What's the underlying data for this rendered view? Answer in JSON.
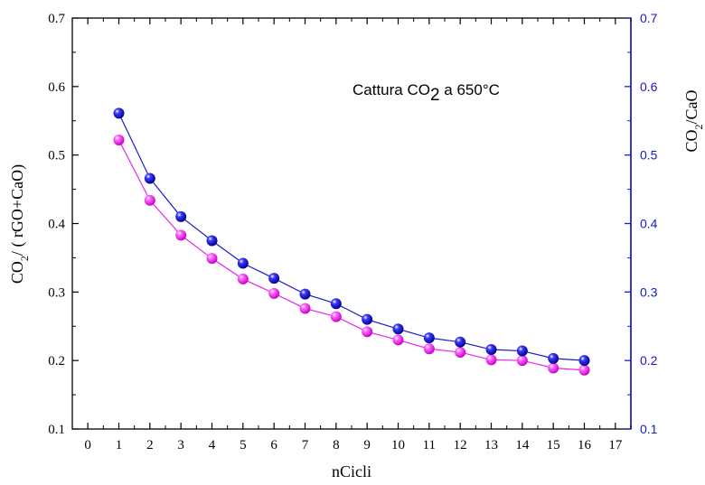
{
  "colors": {
    "left_axis": "#000000",
    "right_axis": "#1a1acc",
    "series_left": "#ee22ee",
    "series_right": "#1a1acc"
  },
  "chart_data": {
    "type": "line",
    "title": "",
    "xlabel": "nCicli",
    "ylabel_parts": {
      "a": "CO",
      "sub": "2",
      "b": "/ ( rGO+CaO)"
    },
    "y2label_parts": {
      "a": "CO",
      "sub": "2",
      "b": "/CaO"
    },
    "annotation_parts": {
      "a": "Cattura CO",
      "sub": "2",
      "b": " a 650°C"
    },
    "xlim": [
      -0.5,
      17.5
    ],
    "ylim": [
      0.1,
      0.7
    ],
    "y2lim": [
      0.1,
      0.7
    ],
    "x_ticks": [
      "0",
      "1",
      "2",
      "3",
      "4",
      "5",
      "6",
      "7",
      "8",
      "9",
      "10",
      "11",
      "12",
      "13",
      "14",
      "15",
      "16",
      "17"
    ],
    "y_ticks": [
      "0.1",
      "0.2",
      "0.3",
      "0.4",
      "0.5",
      "0.6",
      "0.7"
    ],
    "y2_ticks": [
      "0.1",
      "0.2",
      "0.3",
      "0.4",
      "0.5",
      "0.6",
      "0.7"
    ],
    "x": [
      1,
      2,
      3,
      4,
      5,
      6,
      7,
      8,
      9,
      10,
      11,
      12,
      13,
      14,
      15,
      16
    ],
    "series": [
      {
        "axis": "left",
        "color": "#ee22ee",
        "marker": "sphere",
        "values": [
          0.522,
          0.434,
          0.383,
          0.349,
          0.319,
          0.298,
          0.276,
          0.264,
          0.242,
          0.23,
          0.217,
          0.212,
          0.201,
          0.2,
          0.189,
          0.186
        ]
      },
      {
        "axis": "right",
        "color": "#1a1acc",
        "marker": "sphere",
        "values": [
          0.561,
          0.466,
          0.41,
          0.375,
          0.342,
          0.32,
          0.297,
          0.283,
          0.26,
          0.246,
          0.233,
          0.227,
          0.216,
          0.214,
          0.203,
          0.2
        ]
      }
    ],
    "grid": false,
    "legend": "none"
  }
}
